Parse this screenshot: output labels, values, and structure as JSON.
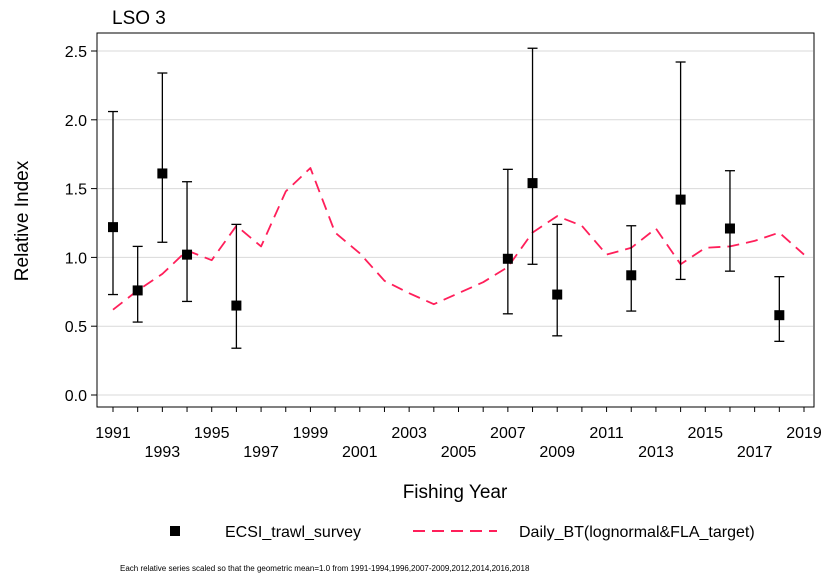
{
  "chart_data": {
    "type": "scatter",
    "title": "LSO 3",
    "xlabel": "Fishing Year",
    "ylabel": "Relative Index",
    "xlim": [
      1991,
      2019
    ],
    "ylim": [
      0.0,
      2.5
    ],
    "x_ticks_upper": [
      "1991",
      "1995",
      "1999",
      "2003",
      "2007",
      "2011",
      "2015",
      "2019"
    ],
    "x_ticks_lower": [
      "1993",
      "1997",
      "2001",
      "2005",
      "2009",
      "2013",
      "2017"
    ],
    "y_ticks": [
      "0.0",
      "0.5",
      "1.0",
      "1.5",
      "2.0",
      "2.5"
    ],
    "grid": true,
    "legend_position": "bottom",
    "series": [
      {
        "name": "ECSI_trawl_survey",
        "kind": "points_with_error_bars",
        "color": "#000000",
        "x": [
          1991,
          1992,
          1993,
          1994,
          1996,
          2007,
          2008,
          2009,
          2012,
          2014,
          2016,
          2018
        ],
        "y": [
          1.22,
          0.76,
          1.61,
          1.02,
          0.65,
          0.99,
          1.54,
          0.73,
          0.87,
          1.42,
          1.21,
          0.58
        ],
        "lower": [
          0.73,
          0.53,
          1.11,
          0.68,
          0.34,
          0.59,
          0.95,
          0.43,
          0.61,
          0.84,
          0.9,
          0.39
        ],
        "upper": [
          2.06,
          1.08,
          2.34,
          1.55,
          1.24,
          1.64,
          2.52,
          1.24,
          1.23,
          2.42,
          1.63,
          0.86
        ]
      },
      {
        "name": "Daily_BT(lognormal&FLA_target)",
        "kind": "dashed_line",
        "color": "#ff1f5a",
        "x": [
          1991,
          1992,
          1993,
          1994,
          1995,
          1996,
          1997,
          1998,
          1999,
          2000,
          2001,
          2002,
          2003,
          2004,
          2005,
          2006,
          2007,
          2008,
          2009,
          2010,
          2011,
          2012,
          2013,
          2014,
          2015,
          2016,
          2017,
          2018,
          2019
        ],
        "y": [
          0.62,
          0.76,
          0.88,
          1.05,
          0.98,
          1.23,
          1.08,
          1.48,
          1.65,
          1.18,
          1.03,
          0.83,
          0.74,
          0.66,
          0.74,
          0.82,
          0.93,
          1.18,
          1.3,
          1.23,
          1.02,
          1.07,
          1.21,
          0.95,
          1.07,
          1.08,
          1.12,
          1.18,
          1.02
        ]
      }
    ],
    "footnote": "Each relative series scaled so that the geometric mean=1.0 from 1991-1994,1996,2007-2009,2012,2014,2016,2018"
  }
}
